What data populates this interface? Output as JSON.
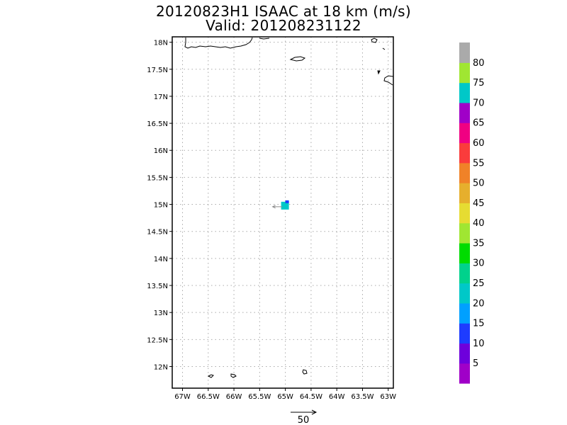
{
  "title": "20120823H1 ISAAC at 18 km (m/s)",
  "subtitle": "Valid: 201208231122",
  "map": {
    "lon_ticks": [
      "67W",
      "66.5W",
      "66W",
      "65.5W",
      "65W",
      "64.5W",
      "64W",
      "63.5W",
      "63W"
    ],
    "lat_ticks": [
      "18N",
      "17.5N",
      "17N",
      "16.5N",
      "16N",
      "15.5N",
      "15N",
      "14.5N",
      "14N",
      "13.5N",
      "13N",
      "12.5N",
      "12N"
    ],
    "lon_range": [
      -67.2,
      -62.9
    ],
    "lat_range": [
      11.6,
      18.1
    ],
    "grid": true,
    "wind_cell": {
      "lon": -65.0,
      "lat": 14.97,
      "speed_band": "70-75",
      "color": "#00c8c8"
    },
    "wind_vector": {
      "dir_to": "west",
      "color": "#8c8c8c"
    }
  },
  "reference_vector": {
    "label": "50"
  },
  "colorbar": {
    "labels": [
      "5",
      "10",
      "15",
      "20",
      "25",
      "30",
      "35",
      "40",
      "45",
      "50",
      "55",
      "60",
      "65",
      "70",
      "75",
      "80"
    ],
    "colors": [
      "#a000c8",
      "#6e00dc",
      "#1e3cff",
      "#00a0ff",
      "#00c8c8",
      "#00d28c",
      "#00dc00",
      "#a0e632",
      "#e6dc32",
      "#e6af2d",
      "#f08228",
      "#fa3c3c",
      "#f00082",
      "#a000c8",
      "#00c8c8",
      "#a0e632",
      "#aaaaaa"
    ]
  }
}
